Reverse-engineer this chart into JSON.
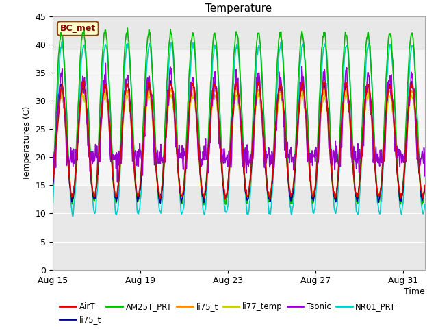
{
  "title": "Temperature",
  "xlabel": "Time",
  "ylabel": "Temperatures (C)",
  "ylim": [
    0,
    45
  ],
  "yticks": [
    0,
    5,
    10,
    15,
    20,
    25,
    30,
    35,
    40,
    45
  ],
  "xtick_labels": [
    "Aug 15",
    "Aug 19",
    "Aug 23",
    "Aug 27",
    "Aug 31"
  ],
  "xtick_positions": [
    0,
    4,
    8,
    12,
    16
  ],
  "annotation_text": "BC_met",
  "annotation_bg": "#ffffcc",
  "annotation_border": "#8B4513",
  "annotation_text_color": "#8B0000",
  "shaded_band_low": 15,
  "shaded_band_high": 39,
  "series_colors": {
    "AirT": "#dd0000",
    "li75_t_blue": "#000099",
    "AM25T_PRT": "#00bb00",
    "li75_t_orange": "#ff8800",
    "li77_temp": "#cccc00",
    "Tsonic": "#9900cc",
    "NR01_PRT": "#00cccc"
  },
  "background_color": "#ffffff",
  "plot_bg_color": "#e8e8e8",
  "legend_entries": [
    {
      "label": "AirT",
      "color": "#dd0000"
    },
    {
      "label": "li75_t",
      "color": "#000099"
    },
    {
      "label": "AM25T_PRT",
      "color": "#00bb00"
    },
    {
      "label": "li75_t",
      "color": "#ff8800"
    },
    {
      "label": "li77_temp",
      "color": "#cccc00"
    },
    {
      "label": "Tsonic",
      "color": "#9900cc"
    },
    {
      "label": "NR01_PRT",
      "color": "#00cccc"
    }
  ]
}
